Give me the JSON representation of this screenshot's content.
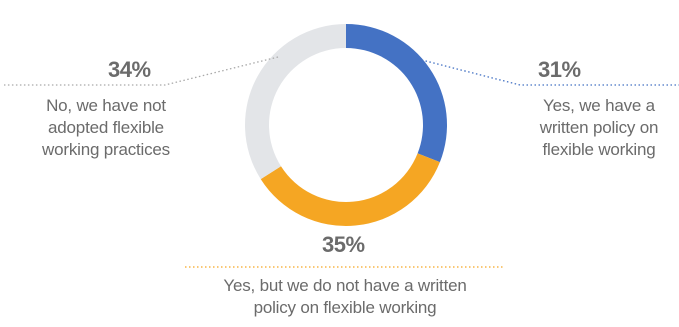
{
  "chart_data": {
    "type": "pie",
    "subtype": "donut",
    "title": "",
    "slices": [
      {
        "value": 31,
        "percent_label": "31%",
        "label_lines": [
          "Yes, we have a",
          "written policy on",
          "flexible working"
        ],
        "color": "#4472c4"
      },
      {
        "value": 35,
        "percent_label": "35%",
        "label_lines": [
          "Yes, but we do not have a written",
          "policy on flexible working"
        ],
        "color": "#f5a623"
      },
      {
        "value": 34,
        "percent_label": "34%",
        "label_lines": [
          "No, we have not",
          "adopted flexible",
          "working practices"
        ],
        "color": "#e3e5e8"
      }
    ],
    "legend": "none"
  }
}
